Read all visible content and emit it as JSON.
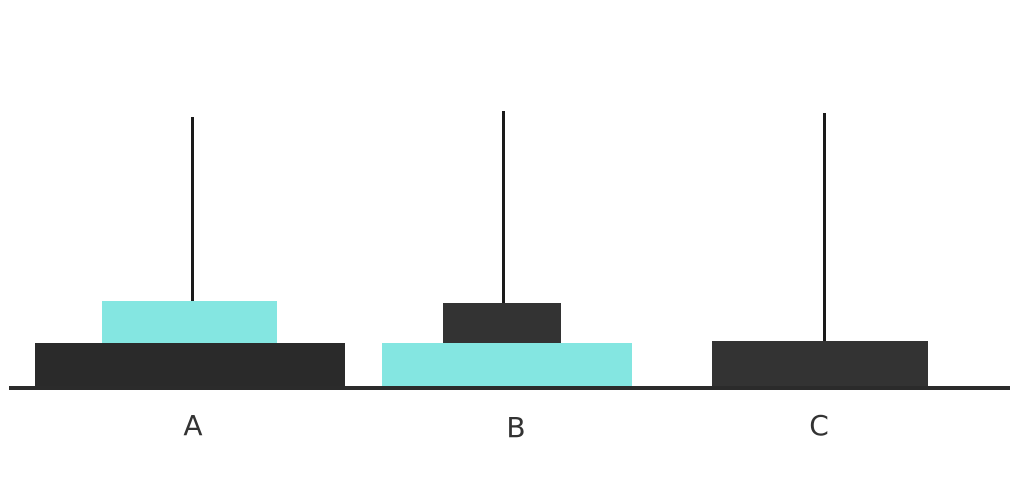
{
  "pegs": [
    {
      "label": "A"
    },
    {
      "label": "B"
    },
    {
      "label": "C"
    }
  ],
  "colors": {
    "dark_disk": "#333333",
    "teal_disk": "#84e6e1",
    "peg": "#1a1a1a",
    "ground": "#2b2b2b",
    "label": "#333333"
  },
  "state": {
    "A": [
      "large-dark",
      "small-teal"
    ],
    "B": [
      "large-teal",
      "small-dark"
    ],
    "C": [
      "medium-dark"
    ]
  }
}
